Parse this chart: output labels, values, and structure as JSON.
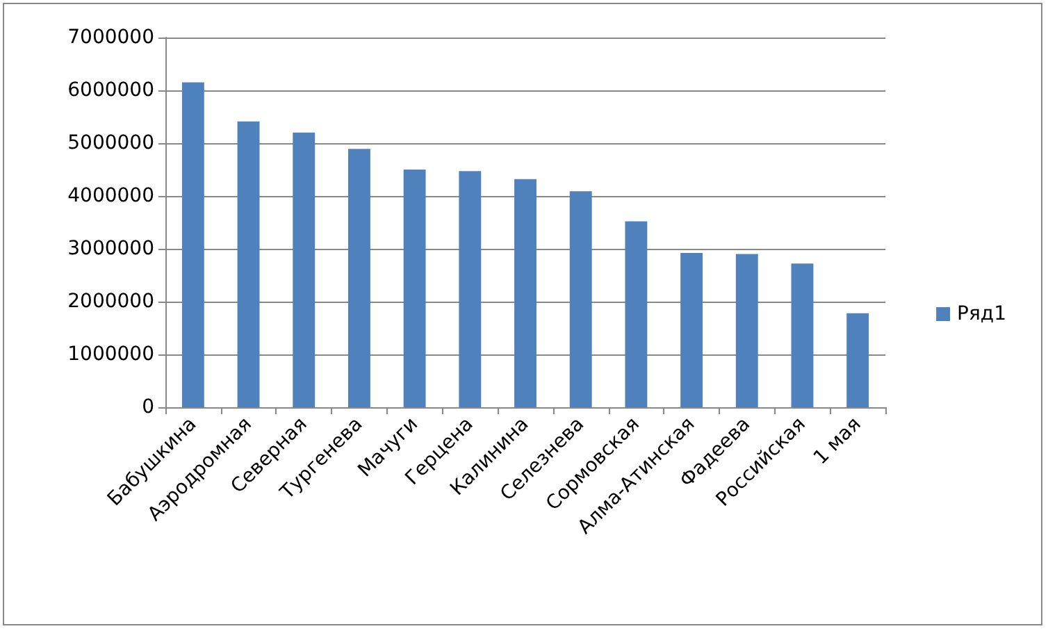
{
  "chart_data": {
    "type": "bar",
    "categories": [
      "Бабушкина",
      "Аэродромная",
      "Северная",
      "Тургенева",
      "Мачуги",
      "Герцена",
      "Калинина",
      "Селезнева",
      "Сормовская",
      "Алма-Атинская",
      "Фадеева",
      "Российская",
      "1 мая"
    ],
    "series": [
      {
        "name": "Ряд1",
        "color": "#4f81bd",
        "values": [
          6150000,
          5410000,
          5200000,
          4890000,
          4500000,
          4470000,
          4320000,
          4090000,
          3520000,
          2920000,
          2900000,
          2720000,
          1780000
        ]
      }
    ],
    "ylim": [
      0,
      7000000
    ],
    "yticks": [
      0,
      1000000,
      2000000,
      3000000,
      4000000,
      5000000,
      6000000,
      7000000
    ],
    "grid": "y",
    "legend": "right"
  }
}
